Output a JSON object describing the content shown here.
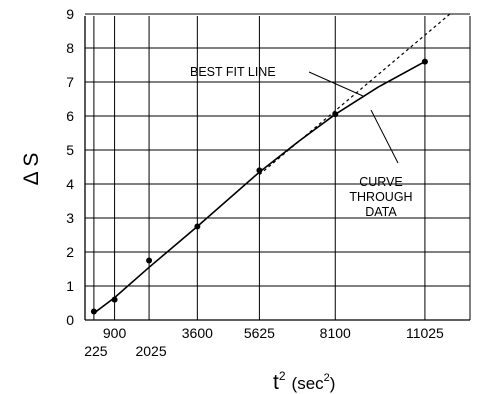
{
  "chart_data": {
    "type": "line",
    "ylabel": "Δ S",
    "xlabel_main": "t",
    "xlabel_sup": "2",
    "xlabel_unit_open": "(sec",
    "xlabel_unit_sup": "2",
    "xlabel_unit_close": ")",
    "xlim": [
      0,
      12000
    ],
    "ylim": [
      0,
      9
    ],
    "grid": true,
    "y_ticks": [
      0,
      1,
      2,
      3,
      4,
      5,
      6,
      7,
      8,
      9
    ],
    "x_ticks": [
      225,
      900,
      2025,
      3600,
      5625,
      8100,
      11025
    ],
    "x_tick_labels": [
      "225",
      "900",
      "2025",
      "3600",
      "5625",
      "8100",
      "11025"
    ],
    "x_tick_label_rows": [
      "lower",
      "upper",
      "lower",
      "upper",
      "upper",
      "upper",
      "upper"
    ],
    "data_points": {
      "x": [
        225,
        900,
        2025,
        3600,
        5625,
        8100,
        11025
      ],
      "y": [
        0.25,
        0.6,
        1.75,
        2.75,
        4.4,
        6.05,
        7.6
      ]
    },
    "best_fit_line": {
      "slope": 0.00076,
      "intercept": 0.0,
      "x_range": [
        5625,
        11850
      ]
    },
    "curve_through_data": {
      "x": [
        225,
        900,
        2025,
        3600,
        5625,
        6900,
        8100,
        9500,
        11025
      ],
      "y": [
        0.2,
        0.66,
        1.55,
        2.75,
        4.35,
        5.25,
        6.05,
        6.85,
        7.6
      ]
    },
    "annotations": {
      "best_fit": "BEST FIT LINE",
      "curve": [
        "CURVE",
        "THROUGH",
        "DATA"
      ]
    }
  }
}
